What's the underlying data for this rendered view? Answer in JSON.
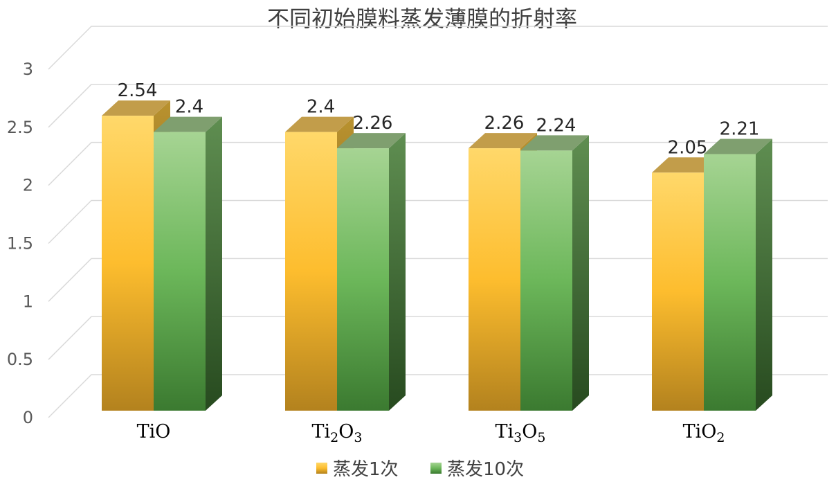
{
  "chart_data": {
    "type": "bar",
    "title": "不同初始膜料蒸发薄膜的折射率",
    "categories": [
      {
        "base": "TiO",
        "parts": [
          [
            "TiO",
            false
          ]
        ]
      },
      {
        "base": "Ti2O3",
        "parts": [
          [
            "Ti",
            false
          ],
          [
            "2",
            true
          ],
          [
            "O",
            false
          ],
          [
            "3",
            true
          ]
        ]
      },
      {
        "base": "Ti3O5",
        "parts": [
          [
            "Ti",
            false
          ],
          [
            "3",
            true
          ],
          [
            "O",
            false
          ],
          [
            "5",
            true
          ]
        ]
      },
      {
        "base": "TiO2",
        "parts": [
          [
            "TiO",
            false
          ],
          [
            "2",
            true
          ]
        ]
      }
    ],
    "series": [
      {
        "name": "蒸发1次",
        "values": [
          2.54,
          2.4,
          2.26,
          2.05
        ],
        "color": "#f5b400"
      },
      {
        "name": "蒸发10次",
        "values": [
          2.4,
          2.26,
          2.24,
          2.21
        ],
        "color": "#5aa84a"
      }
    ],
    "ylim": [
      0,
      3
    ],
    "yticks": [
      "0",
      "0.5",
      "1",
      "1.5",
      "2",
      "2.5",
      "3"
    ],
    "grid": true,
    "legend": "bottom",
    "style": "3d-clustered-column"
  }
}
